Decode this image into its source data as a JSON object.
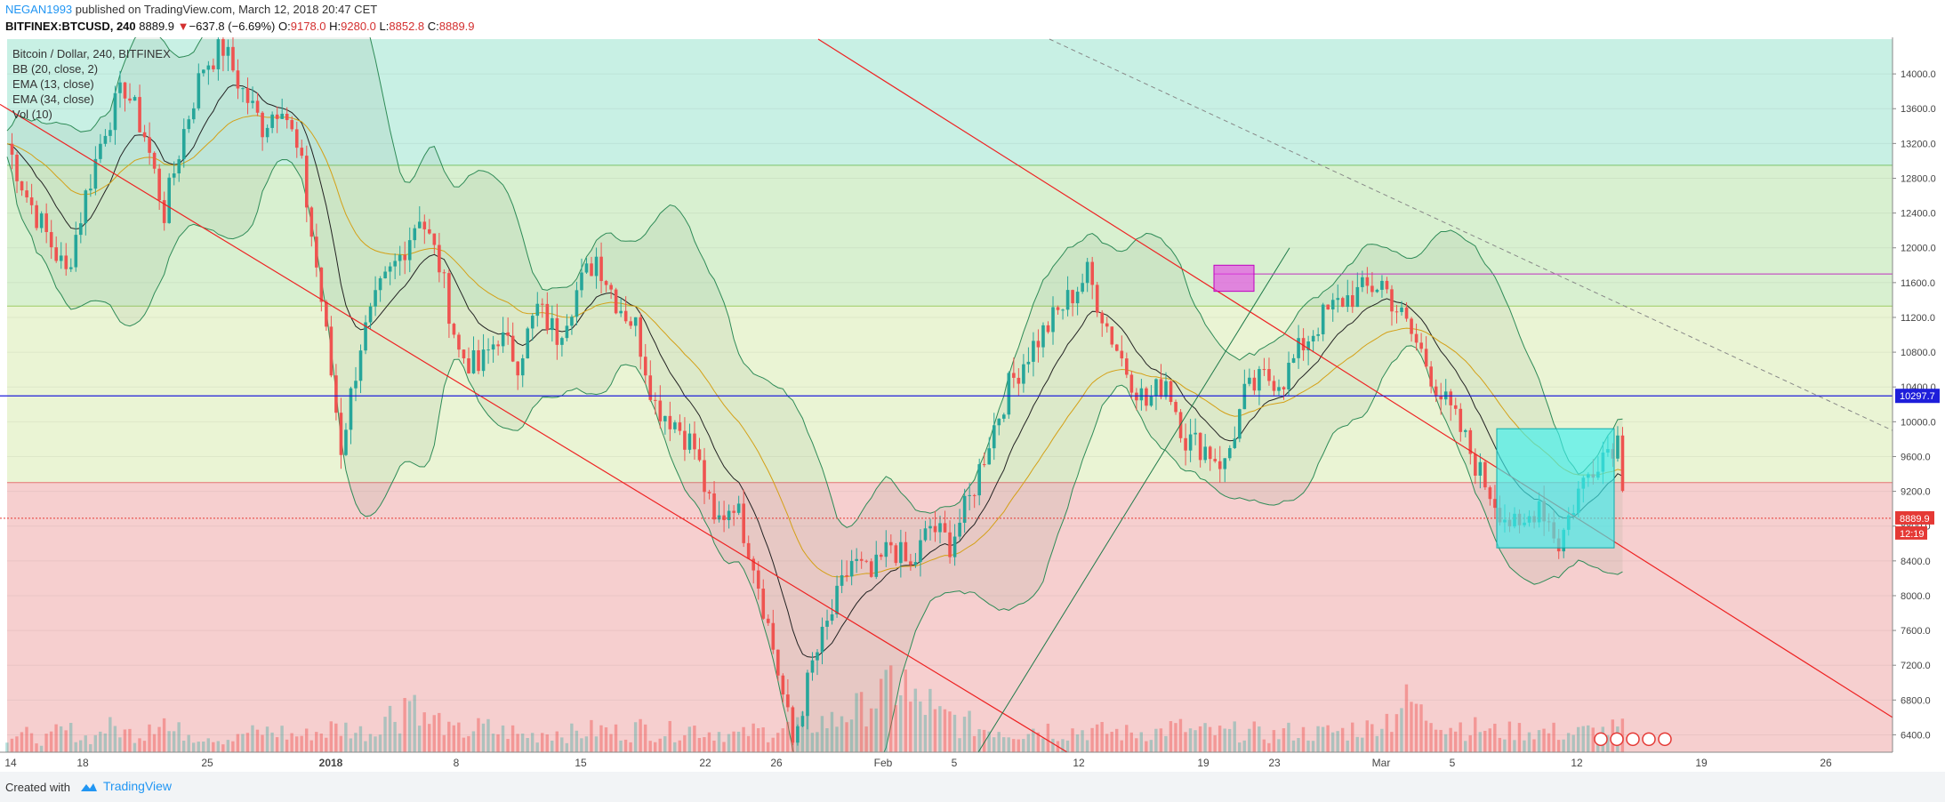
{
  "header": {
    "user": "NEGAN1993",
    "published": " published on TradingView.com, March 12, 2018 20:47 CET",
    "symbol": "BITFINEX:BTCUSD, 240",
    "last": "8889.9",
    "change_arrow": "▼",
    "change": "−637.8 (−6.69%)",
    "o_label": "O:",
    "o_value": "9178.0",
    "h_label": "H:",
    "h_value": "9280.0",
    "l_label": "L:",
    "l_value": "8852.8",
    "c_label": "C:",
    "c_value": "8889.9"
  },
  "legend": {
    "line1": "Bitcoin / Dollar, 240, BITFINEX",
    "line2": "BB (20, close, 2)",
    "line3": "EMA (13, close)",
    "line4": "EMA (34, close)",
    "line5": "Vol (10)"
  },
  "footer": {
    "created_with": "Created with",
    "brand": "TradingView"
  },
  "colors": {
    "up": "#26a69a",
    "down": "#ef5350",
    "zone_top": "#c8f0e4",
    "zone_green": "#d8f0d0",
    "zone_yellow": "#eaf4d4",
    "zone_red": "#f6cfcf",
    "blue_line": "#1e1eda",
    "trend": "#ee2222"
  },
  "chart_data": {
    "type": "candlestick",
    "y_axis": {
      "min": 6200,
      "max": 14400,
      "ticks": [
        "14000.0",
        "13600.0",
        "13200.0",
        "12800.0",
        "12400.0",
        "12000.0",
        "11600.0",
        "11200.0",
        "10800.0",
        "10400.0",
        "10000.0",
        "9600.0",
        "9200.0",
        "8800.0",
        "8400.0",
        "8000.0",
        "7600.0",
        "7200.0",
        "6800.0",
        "6400.0"
      ],
      "tick_values": [
        14000,
        13600,
        13200,
        12800,
        12400,
        12000,
        11600,
        11200,
        10800,
        10400,
        10000,
        9600,
        9200,
        8800,
        8400,
        8000,
        7600,
        7200,
        6800,
        6400
      ],
      "price_label": "10297.7",
      "price_label_value": 10297.7,
      "last_label": "8889.9",
      "last_value": 8889.9,
      "countdown": "12:19"
    },
    "x_axis": {
      "ticks": [
        "14",
        "18",
        "25",
        "2018",
        "8",
        "15",
        "22",
        "26",
        "Feb",
        "5",
        "12",
        "19",
        "23",
        "Mar",
        "5",
        "12",
        "19",
        "26"
      ]
    },
    "zones": [
      {
        "from": 12950,
        "to": 14400,
        "name": "top"
      },
      {
        "from": 11330,
        "to": 12950,
        "name": "green"
      },
      {
        "from": 9300,
        "to": 11330,
        "name": "yellow"
      },
      {
        "from": 6200,
        "to": 9300,
        "name": "red"
      }
    ],
    "horizontal_line": 10297.7,
    "resistance_line": 11700,
    "boxes": [
      {
        "name": "magenta-box",
        "from_price": 11500,
        "to_price": 11800
      },
      {
        "name": "cyan-box",
        "from_price": 8550,
        "to_price": 9920
      }
    ],
    "price_path": [
      [
        0,
        13200
      ],
      [
        8,
        12600
      ],
      [
        16,
        12150
      ],
      [
        24,
        11700
      ],
      [
        32,
        12600
      ],
      [
        40,
        13400
      ],
      [
        48,
        13850
      ],
      [
        56,
        13300
      ],
      [
        64,
        12400
      ],
      [
        72,
        13350
      ],
      [
        80,
        14100
      ],
      [
        88,
        14300
      ],
      [
        96,
        13800
      ],
      [
        104,
        13400
      ],
      [
        112,
        13700
      ],
      [
        120,
        12900
      ],
      [
        128,
        11400
      ],
      [
        136,
        9700
      ],
      [
        144,
        10900
      ],
      [
        152,
        11500
      ],
      [
        160,
        11900
      ],
      [
        168,
        12400
      ],
      [
        176,
        11800
      ],
      [
        184,
        10800
      ],
      [
        192,
        10600
      ],
      [
        200,
        11000
      ],
      [
        208,
        10700
      ],
      [
        216,
        11300
      ],
      [
        224,
        11000
      ],
      [
        232,
        11500
      ],
      [
        240,
        11900
      ],
      [
        248,
        11400
      ],
      [
        256,
        11100
      ],
      [
        264,
        10200
      ],
      [
        272,
        10000
      ],
      [
        280,
        9700
      ],
      [
        288,
        8800
      ],
      [
        296,
        9100
      ],
      [
        304,
        8400
      ],
      [
        312,
        7400
      ],
      [
        320,
        6300
      ],
      [
        328,
        7200
      ],
      [
        336,
        7800
      ],
      [
        344,
        8400
      ],
      [
        352,
        8200
      ],
      [
        360,
        8600
      ],
      [
        368,
        8300
      ],
      [
        376,
        8800
      ],
      [
        384,
        8600
      ],
      [
        392,
        9100
      ],
      [
        400,
        9800
      ],
      [
        408,
        10400
      ],
      [
        416,
        10800
      ],
      [
        424,
        11100
      ],
      [
        432,
        11400
      ],
      [
        440,
        11700
      ],
      [
        448,
        11100
      ],
      [
        456,
        10600
      ],
      [
        464,
        10200
      ],
      [
        472,
        10500
      ],
      [
        480,
        9800
      ],
      [
        488,
        9700
      ],
      [
        496,
        9500
      ],
      [
        504,
        10300
      ],
      [
        512,
        10500
      ],
      [
        520,
        10500
      ],
      [
        528,
        10900
      ],
      [
        536,
        11200
      ],
      [
        544,
        11400
      ],
      [
        552,
        11500
      ],
      [
        560,
        11600
      ],
      [
        568,
        11200
      ],
      [
        576,
        10800
      ],
      [
        584,
        10300
      ],
      [
        592,
        9900
      ],
      [
        600,
        9400
      ],
      [
        608,
        9000
      ],
      [
        616,
        8700
      ],
      [
        624,
        9100
      ],
      [
        632,
        8600
      ],
      [
        640,
        9200
      ],
      [
        648,
        9600
      ],
      [
        656,
        9800
      ],
      [
        660,
        8890
      ]
    ],
    "volume_path": [
      0.25,
      0.2,
      0.3,
      0.22,
      0.35,
      0.28,
      0.5,
      0.3,
      0.25,
      0.2,
      0.28,
      0.3,
      0.25,
      0.3,
      0.35,
      0.3,
      0.55,
      0.8,
      0.45,
      0.3,
      0.35,
      0.3,
      0.25,
      0.3,
      0.28,
      0.32,
      0.3,
      0.35,
      0.3,
      0.35,
      0.3,
      0.25,
      0.3,
      0.35,
      0.4,
      0.45,
      0.6,
      0.8,
      1.0,
      0.7,
      0.5,
      0.4,
      0.35,
      0.3,
      0.35,
      0.3,
      0.32,
      0.3,
      0.28,
      0.3,
      0.35,
      0.3,
      0.28,
      0.3,
      0.25,
      0.3,
      0.28,
      0.3,
      0.35,
      0.5,
      0.7,
      0.55,
      0.4,
      0.35,
      0.3,
      0.32,
      0.3,
      0.28,
      0.3,
      0.33
    ]
  }
}
